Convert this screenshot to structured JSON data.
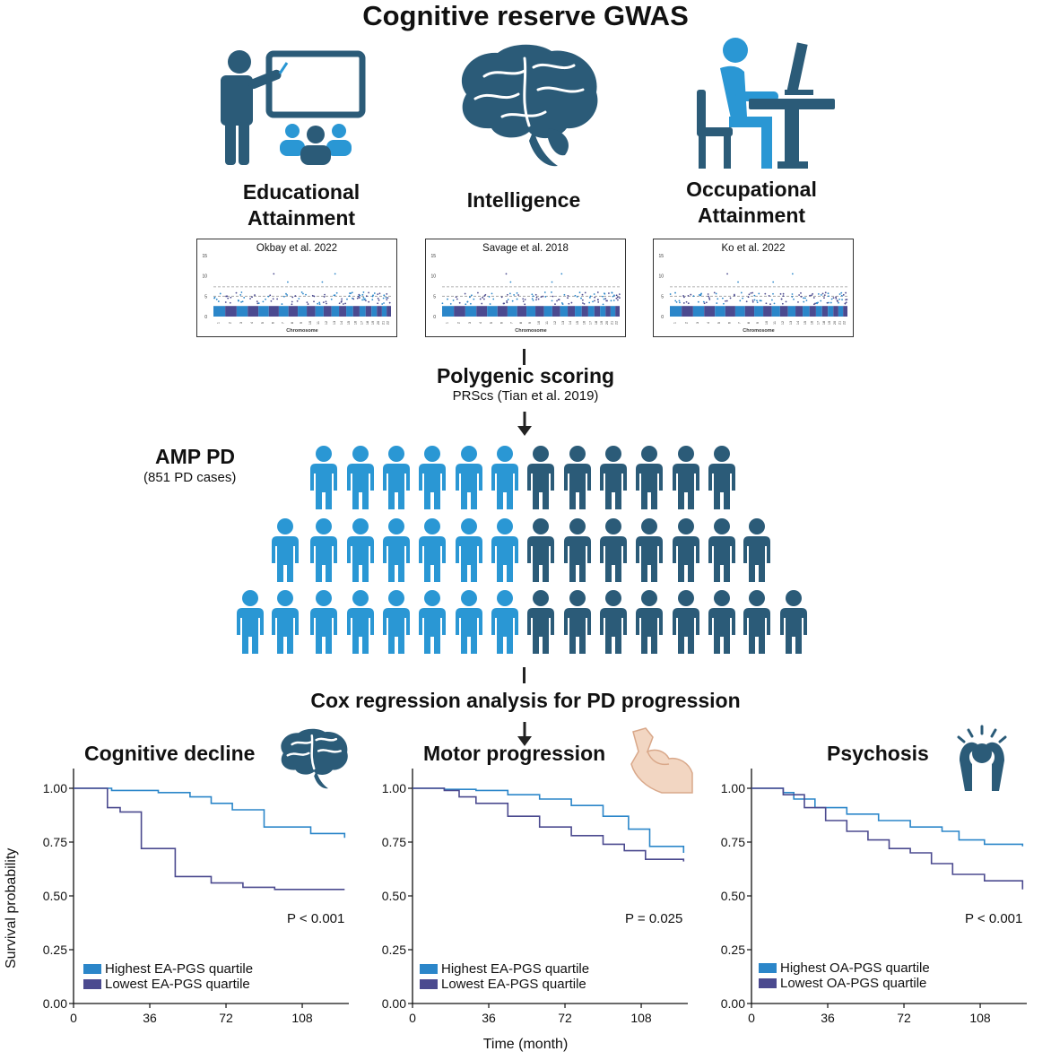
{
  "title": "Cognitive reserve GWAS",
  "categories": [
    {
      "line1": "Educational",
      "line2": "Attainment",
      "icon": "teacher-classroom-icon"
    },
    {
      "line1": "Intelligence",
      "line2": "",
      "icon": "brain-icon"
    },
    {
      "line1": "Occupational",
      "line2": "Attainment",
      "icon": "person-at-computer-desk-icon"
    }
  ],
  "manhattan": {
    "panels": [
      {
        "title": "Okbay et al. 2022"
      },
      {
        "title": "Savage et al. 2018"
      },
      {
        "title": "Ko et al. 2022"
      }
    ],
    "y_ticks": [
      "15",
      "10",
      "5",
      "0"
    ],
    "x_label": "Chromosome",
    "chromosomes": [
      "1",
      "2",
      "3",
      "4",
      "5",
      "6",
      "7",
      "8",
      "9",
      "10",
      "11",
      "12",
      "13",
      "14",
      "15",
      "16",
      "17",
      "18",
      "19",
      "20",
      "21",
      "22"
    ],
    "colors": {
      "odd": "#2b86c9",
      "even": "#4b4a8f",
      "threshold": "#999999"
    }
  },
  "steps": {
    "polygenic": {
      "title": "Polygenic scoring",
      "sub": "PRScs (Tian et al. 2019)"
    },
    "cox": {
      "title": "Cox regression analysis for PD progression"
    }
  },
  "cohort": {
    "title": "AMP PD",
    "sub": "(851 PD cases)",
    "icon": "person-icon",
    "colors": {
      "light": "#2a97d4",
      "dark": "#2b5b78"
    }
  },
  "km": {
    "y_label": "Survival probability",
    "x_label": "Time (month)",
    "y_ticks": [
      "1.00",
      "0.75",
      "0.50",
      "0.25",
      "0.00"
    ],
    "x_ticks": [
      "0",
      "36",
      "72",
      "108"
    ],
    "colors": {
      "high": "#2b86c9",
      "low": "#4b4a8f"
    },
    "panels": [
      {
        "title": "Cognitive decline",
        "icon": "brain-icon",
        "p": "P < 0.001",
        "legend": [
          "Highest EA-PGS quartile",
          "Lowest EA-PGS quartile"
        ]
      },
      {
        "title": "Motor progression",
        "icon": "flexed-arm-icon",
        "p": "P = 0.025",
        "legend": [
          "Highest EA-PGS quartile",
          "Lowest EA-PGS quartile"
        ]
      },
      {
        "title": "Psychosis",
        "icon": "distressed-person-icon",
        "p": "P < 0.001",
        "legend": [
          "Highest OA-PGS quartile",
          "Lowest OA-PGS quartile"
        ]
      }
    ]
  },
  "chart_data": [
    {
      "type": "line",
      "title": "Cognitive decline",
      "xlabel": "Time (month)",
      "ylabel": "Survival probability",
      "xlim": [
        0,
        130
      ],
      "ylim": [
        0,
        1.0
      ],
      "series": [
        {
          "name": "Highest EA-PGS quartile",
          "x": [
            0,
            18,
            40,
            55,
            65,
            75,
            90,
            112,
            128
          ],
          "y": [
            1.0,
            0.99,
            0.98,
            0.96,
            0.93,
            0.9,
            0.82,
            0.79,
            0.77
          ]
        },
        {
          "name": "Lowest EA-PGS quartile",
          "x": [
            0,
            16,
            22,
            32,
            48,
            65,
            80,
            95,
            128
          ],
          "y": [
            1.0,
            0.91,
            0.89,
            0.72,
            0.59,
            0.56,
            0.54,
            0.53,
            0.53
          ]
        }
      ]
    },
    {
      "type": "line",
      "title": "Motor progression",
      "xlabel": "Time (month)",
      "ylabel": "Survival probability",
      "xlim": [
        0,
        130
      ],
      "ylim": [
        0,
        1.0
      ],
      "series": [
        {
          "name": "Highest EA-PGS quartile",
          "x": [
            0,
            15,
            30,
            45,
            60,
            75,
            90,
            102,
            112,
            128
          ],
          "y": [
            1.0,
            0.995,
            0.99,
            0.97,
            0.95,
            0.92,
            0.87,
            0.81,
            0.73,
            0.7
          ]
        },
        {
          "name": "Lowest EA-PGS quartile",
          "x": [
            0,
            15,
            22,
            30,
            45,
            60,
            75,
            90,
            100,
            110,
            128
          ],
          "y": [
            1.0,
            0.99,
            0.96,
            0.93,
            0.87,
            0.82,
            0.78,
            0.74,
            0.71,
            0.67,
            0.66
          ]
        }
      ]
    },
    {
      "type": "line",
      "title": "Psychosis",
      "xlabel": "Time (month)",
      "ylabel": "Survival probability",
      "xlim": [
        0,
        130
      ],
      "ylim": [
        0,
        1.0
      ],
      "series": [
        {
          "name": "Highest OA-PGS quartile",
          "x": [
            0,
            15,
            20,
            30,
            45,
            60,
            75,
            90,
            98,
            110,
            128
          ],
          "y": [
            1.0,
            0.98,
            0.95,
            0.91,
            0.88,
            0.85,
            0.82,
            0.8,
            0.76,
            0.74,
            0.73
          ]
        },
        {
          "name": "Lowest OA-PGS quartile",
          "x": [
            0,
            15,
            25,
            35,
            45,
            55,
            65,
            75,
            85,
            95,
            110,
            128
          ],
          "y": [
            1.0,
            0.97,
            0.91,
            0.85,
            0.8,
            0.76,
            0.72,
            0.7,
            0.65,
            0.6,
            0.57,
            0.53
          ]
        }
      ]
    }
  ]
}
